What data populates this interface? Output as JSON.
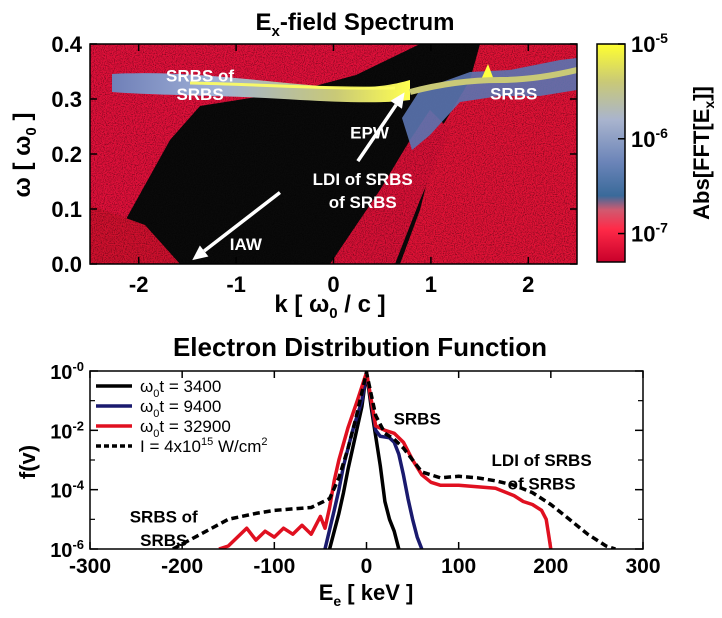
{
  "chart_data": [
    {
      "type": "heatmap",
      "title_main": "E",
      "title_sub": "x",
      "title_rest": "-field Spectrum",
      "xlabel_prefix": "k [ ",
      "xlabel_omega": "ω",
      "xlabel_sub": "0",
      "xlabel_suffix": " / c ]",
      "ylabel_prefix": "ω [ ",
      "ylabel_omega": "ω",
      "ylabel_sub": "0",
      "ylabel_suffix": " ]",
      "xlim": [
        -2.5,
        2.5
      ],
      "ylim": [
        0.0,
        0.4
      ],
      "xticks": [
        -2,
        -1,
        0,
        1,
        2
      ],
      "xtick_labels": [
        "-2",
        "-1",
        "0",
        "1",
        "2"
      ],
      "yticks": [
        0.0,
        0.1,
        0.2,
        0.3,
        0.4
      ],
      "ytick_labels": [
        "0.0",
        "0.1",
        "0.2",
        "0.3",
        "0.4"
      ],
      "colorbar": {
        "label": "Abs[FFT[E",
        "label_sub": "x",
        "label_end": "]]",
        "range_log10": [
          -7.3,
          -5.0
        ],
        "ticks": [
          {
            "exp": -5,
            "base": "10",
            "sup": "-5"
          },
          {
            "exp": -6,
            "base": "10",
            "sup": "-6"
          },
          {
            "exp": -7,
            "base": "10",
            "sup": "-7"
          }
        ],
        "stops": [
          {
            "value": -7.3,
            "color": "#c8002a"
          },
          {
            "value": -6.95,
            "color": "#ff2a48"
          },
          {
            "value": -6.75,
            "color": "#d05a70"
          },
          {
            "value": -6.6,
            "color": "#3a6a9a"
          },
          {
            "value": -6.25,
            "color": "#6b84b8"
          },
          {
            "value": -5.8,
            "color": "#a9b4ce"
          },
          {
            "value": -5.4,
            "color": "#c9c977"
          },
          {
            "value": -5.0,
            "color": "#ffff30"
          }
        ]
      },
      "features": [
        {
          "name": "SRBS of SRBS",
          "k_range": [
            -2.0,
            0.9
          ],
          "omega_center": 0.31,
          "omega_peak": 0.318
        },
        {
          "name": "SRBS",
          "k_range": [
            0.9,
            1.9
          ],
          "omega": 0.33
        },
        {
          "name": "EPW",
          "k": 0.7,
          "omega": 0.32
        },
        {
          "name": "IAW",
          "k": -1.4,
          "omega": 0.0
        }
      ],
      "annotations": [
        {
          "lines": [
            "SRBS of",
            "SRBS"
          ],
          "k": -1.37,
          "omega": [
            0.343,
            0.309
          ]
        },
        {
          "lines": [
            "SRBS"
          ],
          "k": 1.85,
          "omega": [
            0.31
          ]
        },
        {
          "lines": [
            "EPW"
          ],
          "k": 0.37,
          "omega": [
            0.239
          ]
        },
        {
          "lines": [
            "LDI of SRBS",
            "of SRBS"
          ],
          "k": 0.3,
          "omega": [
            0.155,
            0.113
          ]
        },
        {
          "lines": [
            "IAW"
          ],
          "k": -0.9,
          "omega": [
            0.036
          ]
        }
      ],
      "arrows": [
        {
          "from": [
            0.25,
            0.187
          ],
          "to": [
            0.73,
            0.312
          ]
        },
        {
          "from": [
            -0.55,
            0.13
          ],
          "to": [
            -1.45,
            0.007
          ]
        }
      ]
    },
    {
      "type": "line",
      "title": "Electron Distribution Function",
      "xlabel": "E",
      "xlabel_sub": "e",
      "xlabel_suffix": " [ keV ]",
      "ylabel": "f(v)",
      "xlim": [
        -300,
        300
      ],
      "ylim_log10": [
        -6,
        0
      ],
      "xticks": [
        -300,
        -200,
        -100,
        0,
        100,
        200,
        300
      ],
      "xtick_labels": [
        "-300",
        "-200",
        "-100",
        "0",
        "100",
        "200",
        "300"
      ],
      "yticks": [
        {
          "exp": 0,
          "base": "10",
          "sup": "-0"
        },
        {
          "exp": -2,
          "base": "10",
          "sup": "-2"
        },
        {
          "exp": -4,
          "base": "10",
          "sup": "-4"
        },
        {
          "exp": -6,
          "base": "10",
          "sup": "-6"
        }
      ],
      "legend_position": "top-left",
      "series": [
        {
          "name_pre": "ω",
          "name_sub": "0",
          "name_post": "t = 3400",
          "color": "#000000",
          "dash": "",
          "x": [
            -40,
            -30,
            -25,
            -20,
            -15,
            -10,
            -5,
            0,
            5,
            10,
            15,
            20,
            25,
            30,
            35
          ],
          "y_log10": [
            -6.0,
            -4.8,
            -4.1,
            -3.3,
            -2.6,
            -1.9,
            -1.2,
            -0.05,
            -1.2,
            -2.2,
            -3.2,
            -4.4,
            -5.0,
            -5.4,
            -6.0
          ]
        },
        {
          "name_pre": "ω",
          "name_sub": "0",
          "name_post": "t = 9400",
          "color": "#1a1a6e",
          "dash": "",
          "x": [
            -45,
            -35,
            -30,
            -25,
            -20,
            -15,
            -10,
            -5,
            0,
            5,
            10,
            15,
            25,
            30,
            35,
            40,
            45,
            50,
            55,
            60
          ],
          "y_log10": [
            -6.0,
            -4.7,
            -4.0,
            -3.2,
            -2.6,
            -2.0,
            -1.5,
            -1.0,
            -0.05,
            -1.0,
            -2.0,
            -2.2,
            -2.25,
            -2.4,
            -2.8,
            -3.5,
            -4.3,
            -5.0,
            -5.6,
            -6.0
          ]
        },
        {
          "name_pre": "ω",
          "name_sub": "0",
          "name_post": "t = 32900",
          "color": "#e01020",
          "dash": "",
          "x": [
            -160,
            -150,
            -140,
            -130,
            -120,
            -110,
            -100,
            -90,
            -80,
            -70,
            -60,
            -50,
            -45,
            -40,
            -35,
            -30,
            -20,
            -10,
            0,
            10,
            20,
            30,
            40,
            50,
            60,
            70,
            80,
            100,
            120,
            140,
            160,
            170,
            180,
            190,
            195,
            198,
            200
          ],
          "y_log10": [
            -6.0,
            -5.9,
            -5.6,
            -5.3,
            -5.7,
            -5.4,
            -5.6,
            -5.3,
            -5.5,
            -5.2,
            -5.5,
            -4.9,
            -5.3,
            -4.6,
            -3.7,
            -3.0,
            -1.9,
            -1.0,
            -0.05,
            -1.85,
            -2.0,
            -2.1,
            -2.4,
            -3.0,
            -3.5,
            -3.75,
            -3.85,
            -3.85,
            -3.9,
            -3.95,
            -4.2,
            -4.4,
            -4.5,
            -4.7,
            -5.0,
            -5.6,
            -6.0
          ]
        },
        {
          "name": "I = 4x10",
          "name_sup": "15",
          "name_post": " W/cm",
          "name_sup2": "2",
          "color": "#000000",
          "dash": "7,4",
          "x": [
            -210,
            -180,
            -150,
            -120,
            -100,
            -80,
            -60,
            -40,
            -30,
            -20,
            -10,
            0,
            10,
            20,
            30,
            40,
            50,
            60,
            80,
            100,
            120,
            140,
            160,
            180,
            200,
            220,
            240,
            260,
            270
          ],
          "y_log10": [
            -6.0,
            -5.5,
            -5.0,
            -4.8,
            -4.7,
            -4.65,
            -4.6,
            -4.3,
            -3.6,
            -2.6,
            -1.4,
            -0.05,
            -1.5,
            -2.1,
            -2.3,
            -2.6,
            -3.0,
            -3.4,
            -3.6,
            -3.55,
            -3.6,
            -3.7,
            -3.85,
            -4.1,
            -4.5,
            -5.0,
            -5.5,
            -5.9,
            -6.0
          ]
        }
      ],
      "annotations": [
        {
          "lines": [
            "SRBS"
          ],
          "x": 55,
          "y_log10": [
            -1.6
          ]
        },
        {
          "lines": [
            "LDI of SRBS",
            "of SRBS"
          ],
          "x": 190,
          "y_log10": [
            -3.0,
            -3.8
          ]
        },
        {
          "lines": [
            "SRBS of",
            "SRBS"
          ],
          "x": -220,
          "y_log10": [
            -4.9,
            -5.7
          ]
        }
      ]
    }
  ]
}
